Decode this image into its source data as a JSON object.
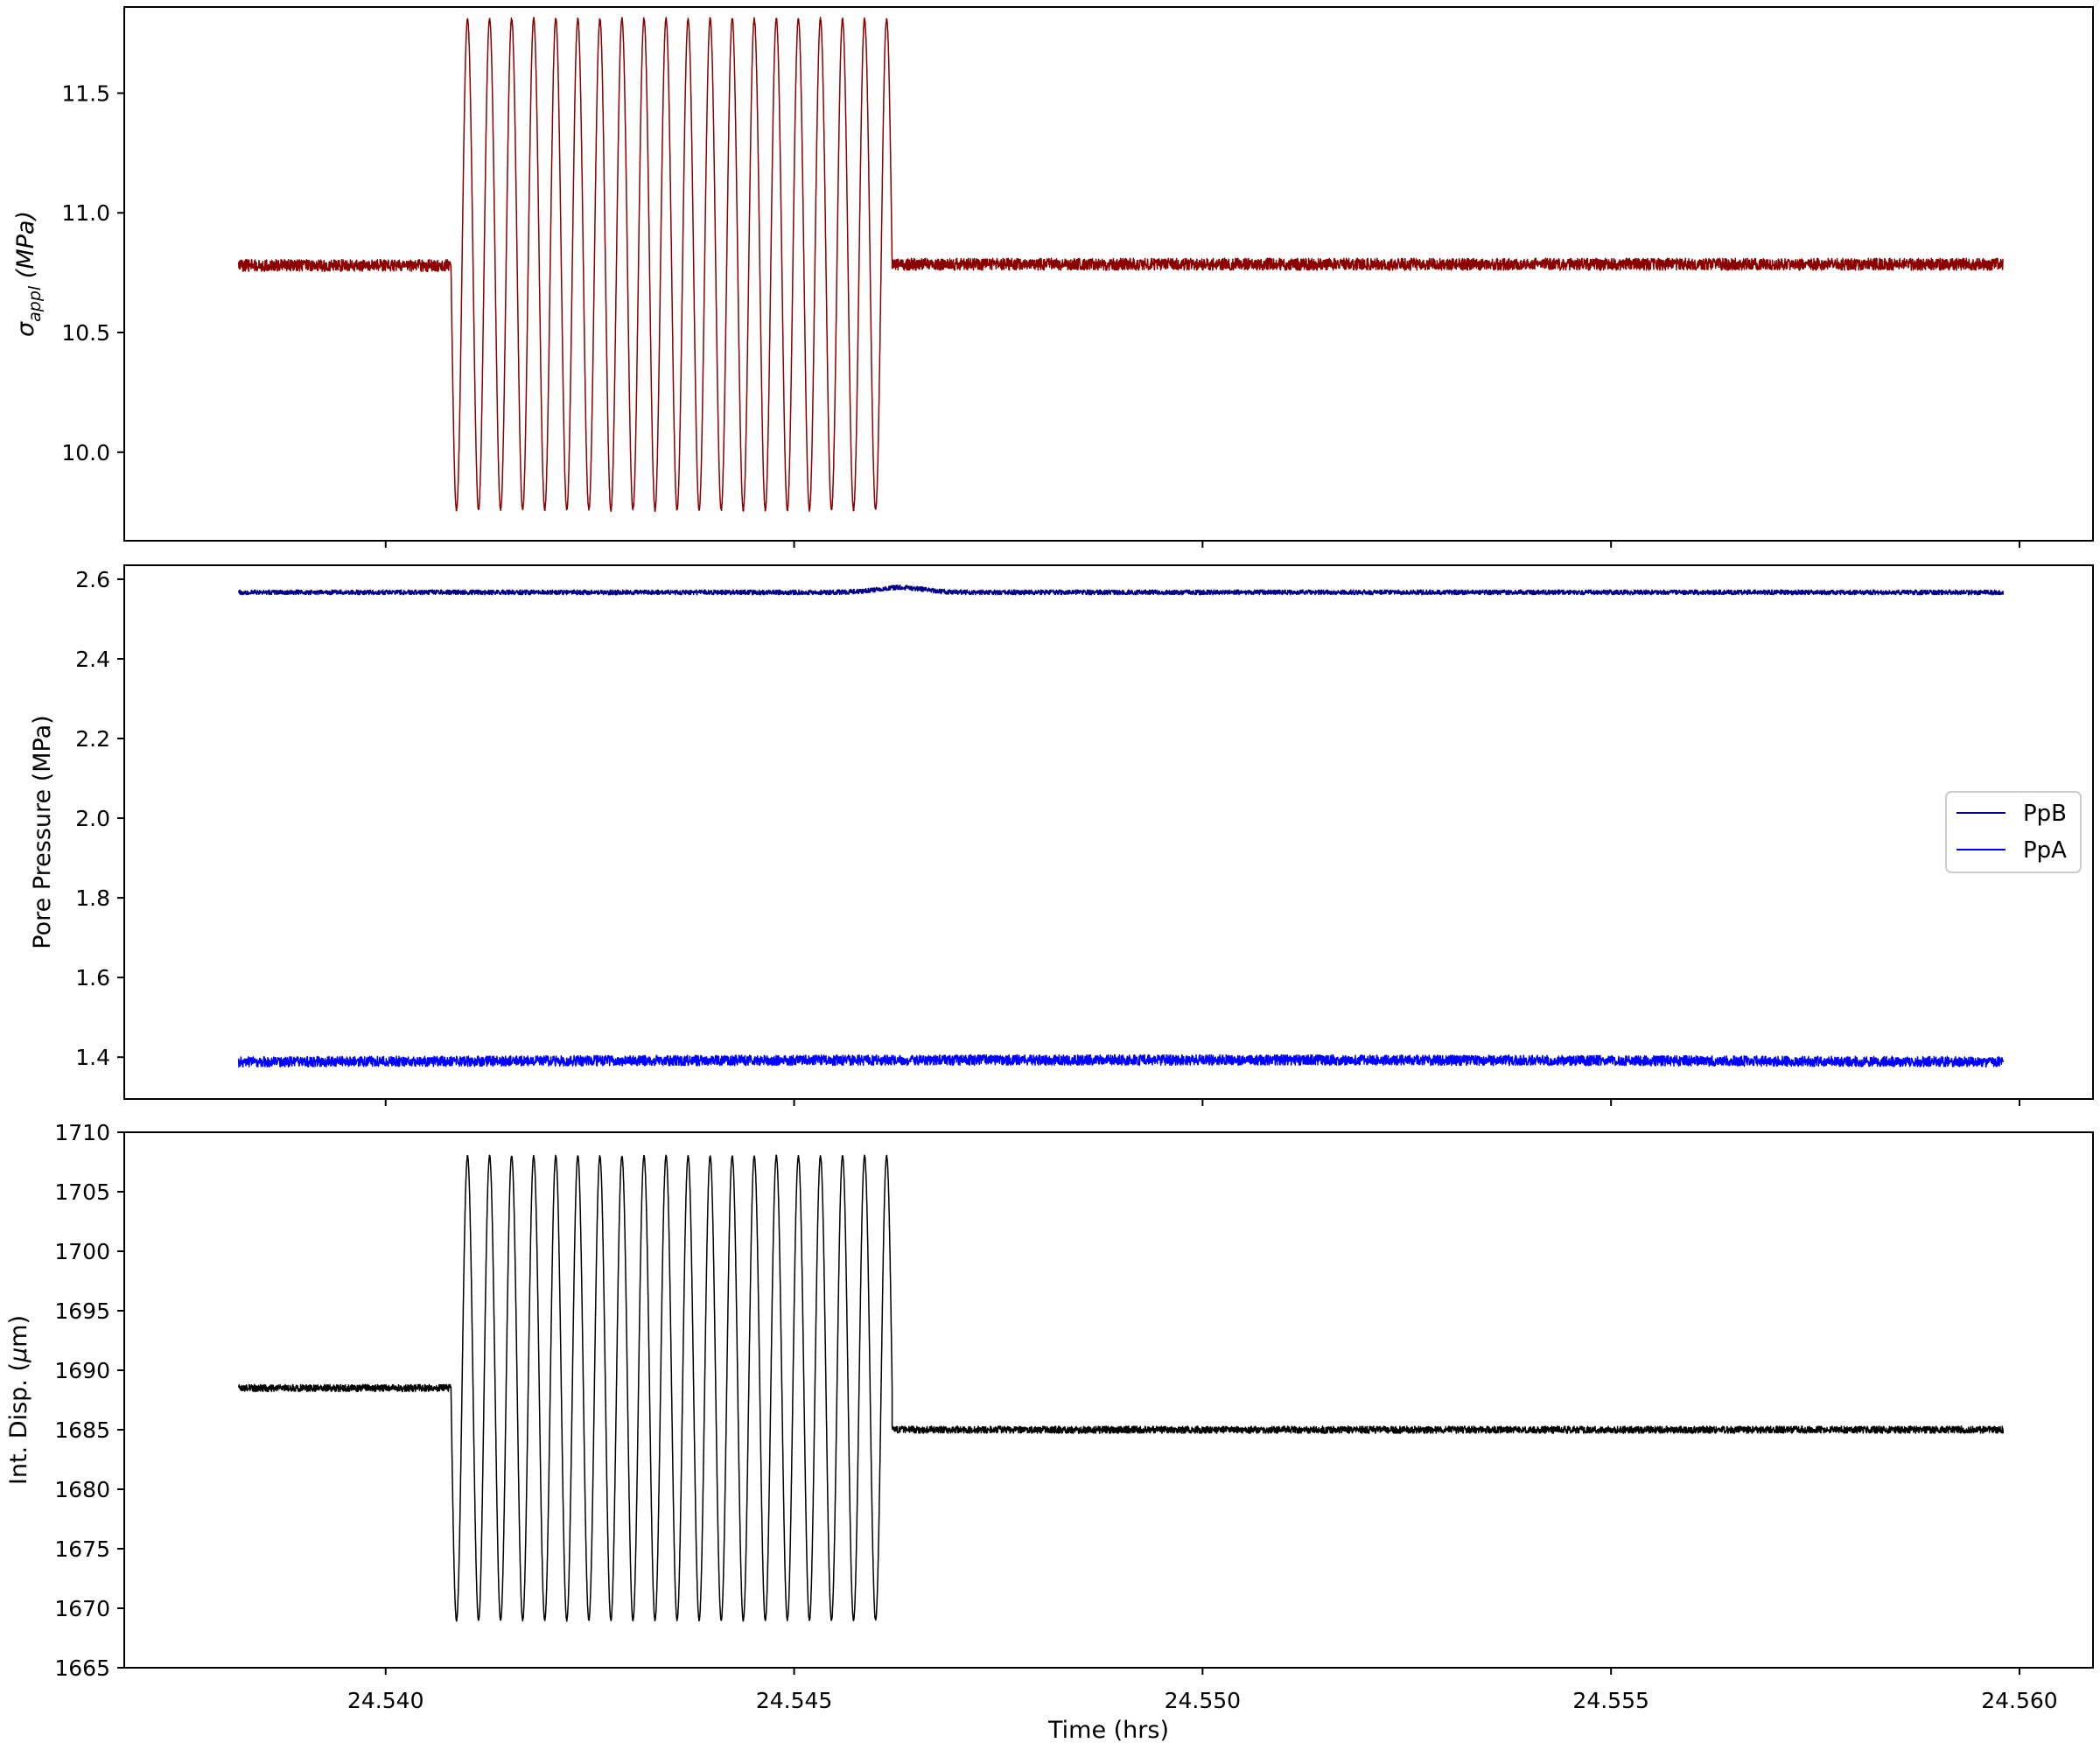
{
  "chart_data": [
    {
      "type": "line",
      "ylabel_symbol": "σ",
      "ylabel_subscript": "appl",
      "ylabel_unit": " (MPa)",
      "xlim": [
        24.5368,
        24.5609
      ],
      "ylim": [
        9.63,
        11.86
      ],
      "xticks": [
        24.54,
        24.545,
        24.55,
        24.555,
        24.56
      ],
      "yticks": [
        10.0,
        10.5,
        11.0,
        11.5
      ],
      "ytick_labels": [
        "10.0",
        "10.5",
        "11.0",
        "11.5"
      ],
      "grid": false,
      "series": [
        {
          "color": "#8b0000",
          "t_start": 24.5382,
          "t_end": 24.5598,
          "baseline": 10.78,
          "noise": 0.025,
          "segments": [
            {
              "x_start": 24.5382,
              "x_end": 24.5408,
              "kind": "flat",
              "level": 10.78
            },
            {
              "x_start": 24.5408,
              "x_end": 24.5462,
              "kind": "oscillation",
              "cycles": 20,
              "center": 10.785,
              "min": 9.76,
              "max": 11.81
            },
            {
              "x_start": 24.5462,
              "x_end": 24.5598,
              "kind": "flat",
              "level": 10.785
            }
          ]
        }
      ]
    },
    {
      "type": "line",
      "ylabel": "Pore Pressure (MPa)",
      "xlim": [
        24.5368,
        24.5609
      ],
      "ylim": [
        1.295,
        2.635
      ],
      "xticks": [
        24.54,
        24.545,
        24.55,
        24.555,
        24.56
      ],
      "yticks": [
        1.4,
        1.6,
        1.8,
        2.0,
        2.2,
        2.4,
        2.6
      ],
      "ytick_labels": [
        "1.4",
        "1.6",
        "1.8",
        "2.0",
        "2.2",
        "2.4",
        "2.6"
      ],
      "grid": false,
      "legend_position": "center-right",
      "series": [
        {
          "name": "PpB",
          "color": "#00008b",
          "t_start": 24.5382,
          "t_end": 24.5598,
          "baseline": 2.567,
          "noise": 0.006,
          "bump": {
            "x": 24.5463,
            "height": 0.012
          }
        },
        {
          "name": "PpA",
          "color": "#0000ff",
          "t_start": 24.5382,
          "t_end": 24.5598,
          "baseline": 1.388,
          "noise": 0.013,
          "drift_end": 1.393
        }
      ]
    },
    {
      "type": "line",
      "xlabel": "Time (hrs)",
      "ylabel_prefix": "Int. Disp. (",
      "ylabel_symbol": "μ",
      "ylabel_suffix": "m)",
      "xlim": [
        24.5368,
        24.5609
      ],
      "ylim": [
        1665,
        1710
      ],
      "xticks": [
        24.54,
        24.545,
        24.55,
        24.555,
        24.56
      ],
      "xtick_labels": [
        "24.540",
        "24.545",
        "24.550",
        "24.555",
        "24.560"
      ],
      "yticks": [
        1665,
        1670,
        1675,
        1680,
        1685,
        1690,
        1695,
        1700,
        1705,
        1710
      ],
      "ytick_labels": [
        "1665",
        "1670",
        "1675",
        "1680",
        "1685",
        "1690",
        "1695",
        "1700",
        "1705",
        "1710"
      ],
      "grid": false,
      "series": [
        {
          "color": "#000000",
          "t_start": 24.5382,
          "t_end": 24.5598,
          "noise": 0.3,
          "segments": [
            {
              "x_start": 24.5382,
              "x_end": 24.5408,
              "kind": "flat",
              "level": 1688.5
            },
            {
              "x_start": 24.5408,
              "x_end": 24.5462,
              "kind": "oscillation",
              "cycles": 20,
              "center": 1688.5,
              "min": 1669.0,
              "max": 1708.0
            },
            {
              "x_start": 24.5462,
              "x_end": 24.5598,
              "kind": "flat",
              "level": 1685.0
            }
          ]
        }
      ]
    }
  ]
}
